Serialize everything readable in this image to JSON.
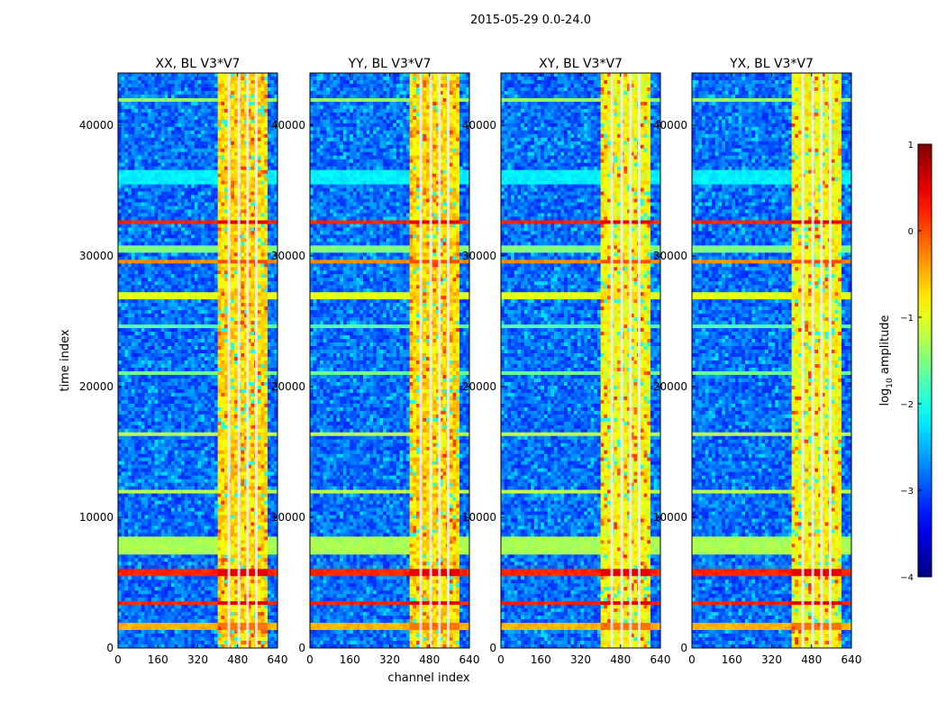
{
  "figure": {
    "suptitle": "2015-05-29 0.0-24.0",
    "xlabel": "channel index",
    "ylabel": "time index"
  },
  "chart_data": {
    "type": "heatmap",
    "x_range": [
      0,
      640
    ],
    "y_range": [
      0,
      44000
    ],
    "x_ticks": [
      0,
      160,
      320,
      480,
      640
    ],
    "y_ticks": [
      0,
      10000,
      20000,
      30000,
      40000
    ],
    "panels": [
      {
        "title": "XX, BL V3*V7",
        "polarization": "XX"
      },
      {
        "title": "YY, BL V3*V7",
        "polarization": "YY"
      },
      {
        "title": "XY, BL V3*V7",
        "polarization": "XY"
      },
      {
        "title": "YX, BL V3*V7",
        "polarization": "YX"
      }
    ],
    "colorbar": {
      "label": "log",
      "label_sub": "10",
      "label_suffix": " amplitude",
      "range": [
        -4,
        1
      ],
      "ticks": [
        1,
        0,
        -1,
        -2,
        -3,
        -4
      ],
      "tick_labels": [
        "1",
        "0",
        "−1",
        "−2",
        "−3",
        "−4"
      ],
      "colormap": "jet"
    },
    "features": {
      "bright_channel_band": [
        400,
        600
      ],
      "channel_gap_lines": [
        445,
        485,
        520,
        555
      ],
      "strong_rfi_time_bands": [
        {
          "t": 8000,
          "width": 600,
          "level": -1.3
        },
        {
          "t": 7600,
          "width": 500,
          "level": -1.3
        },
        {
          "t": 32500,
          "width": 150,
          "level": 0.2
        },
        {
          "t": 5800,
          "width": 150,
          "level": 0.2
        },
        {
          "t": 3500,
          "width": 150,
          "level": 0.2
        },
        {
          "t": 1600,
          "width": 200,
          "level": -0.5
        },
        {
          "t": 42000,
          "width": 150,
          "level": -1.4
        },
        {
          "t": 36000,
          "width": 600,
          "level": -2.2
        },
        {
          "t": 30500,
          "width": 250,
          "level": -1.5
        },
        {
          "t": 29500,
          "width": 200,
          "level": -0.3
        },
        {
          "t": 27000,
          "width": 200,
          "level": -1.0
        },
        {
          "t": 21000,
          "width": 150,
          "level": -1.6
        },
        {
          "t": 16300,
          "width": 150,
          "level": -1.2
        },
        {
          "t": 12000,
          "width": 150,
          "level": -1.2
        },
        {
          "t": 24700,
          "width": 120,
          "level": -1.7
        }
      ]
    }
  }
}
